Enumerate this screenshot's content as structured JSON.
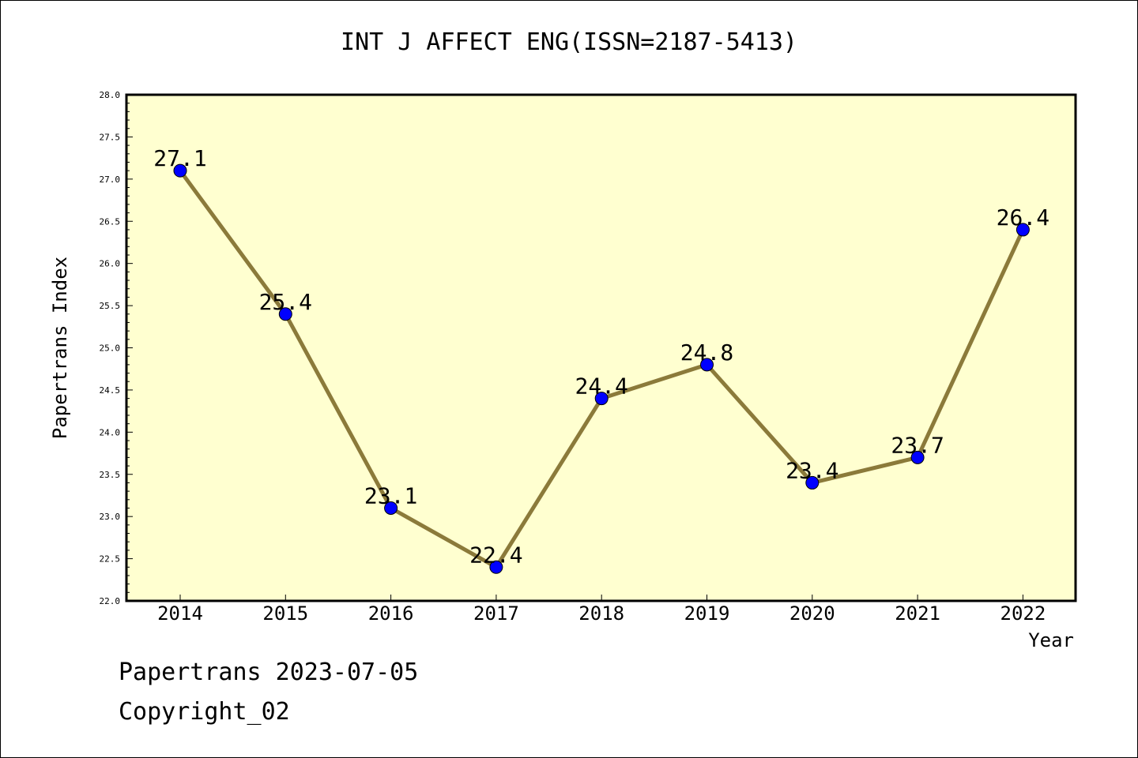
{
  "chart_data": {
    "type": "line",
    "title": "INT J AFFECT ENG(ISSN=2187-5413)",
    "xlabel": "Year",
    "ylabel": "Papertrans Index",
    "categories": [
      "2014",
      "2015",
      "2016",
      "2017",
      "2018",
      "2019",
      "2020",
      "2021",
      "2022"
    ],
    "values": [
      27.1,
      25.4,
      23.1,
      22.4,
      24.4,
      24.8,
      23.4,
      23.7,
      26.4
    ],
    "data_labels": [
      "27.1",
      "25.4",
      "23.1",
      "22.4",
      "24.4",
      "24.8",
      "23.4",
      "23.7",
      "26.4"
    ],
    "ylim": [
      22.0,
      28.0
    ],
    "yticks": [
      "22.0",
      "22.5",
      "23.0",
      "23.5",
      "24.0",
      "24.5",
      "25.0",
      "25.5",
      "26.0",
      "26.5",
      "27.0",
      "27.5",
      "28.0"
    ],
    "grid": false,
    "colors": {
      "plot_background": "#ffffd0",
      "line": "#8b7a3a",
      "marker": "#0000ff"
    }
  },
  "footer": {
    "line1": "Papertrans 2023-07-05",
    "line2": "Copyright_02"
  }
}
